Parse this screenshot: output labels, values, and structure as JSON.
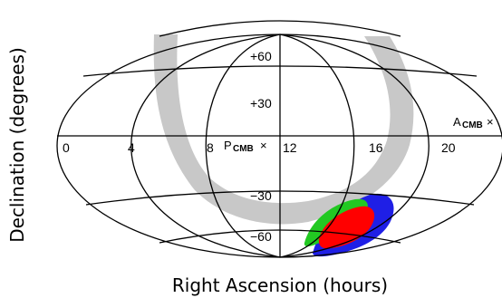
{
  "axes": {
    "x_title": "Right Ascension (hours)",
    "y_title": "Declination (degrees)"
  },
  "ra_ticks": [
    "0",
    "4",
    "8",
    "12",
    "16",
    "20"
  ],
  "dec_ticks": [
    "+60",
    "+30",
    "−30",
    "−60"
  ],
  "markers": {
    "a": {
      "base": "A",
      "sub": "CMB",
      "symbol": "×"
    },
    "p": {
      "base": "P",
      "sub": "CMB",
      "symbol": "×"
    }
  },
  "colors": {
    "grid": "#000000",
    "galactic_band": "#c8c8c8",
    "blue_region": "#1f1fe6",
    "green_region": "#22c922",
    "red_region": "#ff0000"
  }
}
